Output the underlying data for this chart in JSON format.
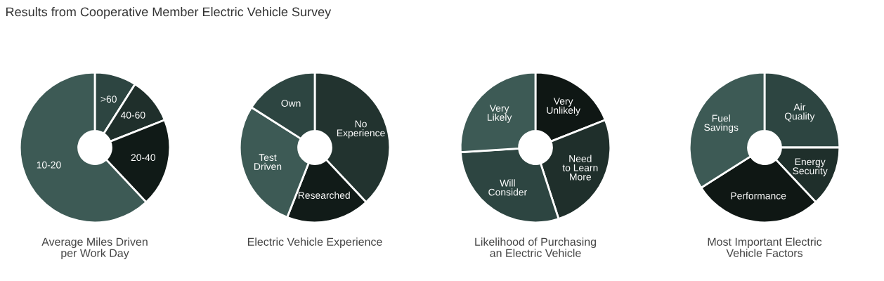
{
  "chart_data": [
    {
      "type": "donut",
      "title": "Average Miles Driven\nper Work Day",
      "annotations": [
        "Results from Cooperative Member Electric Vehicle Survey"
      ],
      "categories": [
        ">60",
        "40-60",
        "20-40",
        "10-20"
      ],
      "values": [
        9,
        10,
        19,
        62
      ],
      "colors": [
        "#2d4541",
        "#1f2f2b",
        "#101a17",
        "#3d5a55"
      ]
    },
    {
      "type": "donut",
      "title": "Electric Vehicle Experience",
      "categories": [
        "No\nExperience",
        "Researched",
        "Test\nDriven",
        "Own"
      ],
      "values": [
        38,
        18,
        28,
        16
      ],
      "colors": [
        "#22332f",
        "#111b18",
        "#3d5a55",
        "#2d4541"
      ]
    },
    {
      "type": "donut",
      "title": "Likelihood of Purchasing\nan Electric Vehicle",
      "categories": [
        "Very\nUnlikely",
        "Need\nto Learn\nMore",
        "Will\nConsider",
        "Very\nLikely"
      ],
      "values": [
        19,
        26,
        29,
        26
      ],
      "colors": [
        "#0f1714",
        "#1f2f2b",
        "#2d4541",
        "#3d5a55"
      ]
    },
    {
      "type": "donut",
      "title": "Most Important Electric\nVehicle Factors",
      "categories": [
        "Air\nQuality",
        "Energy\nSecurity",
        "Performance",
        "Fuel\nSavings"
      ],
      "values": [
        25,
        13,
        28,
        34
      ],
      "colors": [
        "#2d4541",
        "#1f2f2b",
        "#0f1714",
        "#3d5a55"
      ]
    }
  ]
}
